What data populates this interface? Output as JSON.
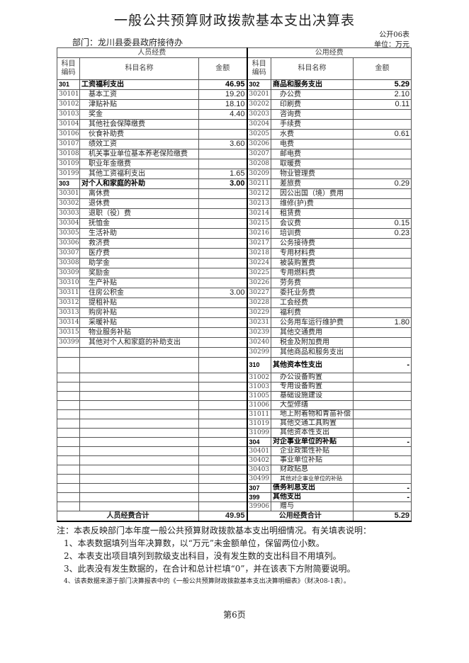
{
  "title": "一般公共预算财政拨款基本支出决算表",
  "form_no": "公开06表",
  "department": "部门：龙川县委县政府接待办",
  "unit": "单位：万元",
  "headers": {
    "personnel": "人员经费",
    "public": "公用经费",
    "code": "科目编码",
    "name": "科目名称",
    "amount": "金额"
  },
  "left": [
    {
      "code": "301",
      "name": "工资福利支出",
      "amount": "46.95",
      "bold": true
    },
    {
      "code": "30101",
      "name": "基本工资",
      "amount": "19.20"
    },
    {
      "code": "30102",
      "name": "津贴补贴",
      "amount": "18.10"
    },
    {
      "code": "30103",
      "name": "奖金",
      "amount": "4.40"
    },
    {
      "code": "30104",
      "name": "其他社会保障缴费",
      "amount": ""
    },
    {
      "code": "30106",
      "name": "伙食补助费",
      "amount": ""
    },
    {
      "code": "30107",
      "name": "绩效工资",
      "amount": "3.60"
    },
    {
      "code": "30108",
      "name": "机关事业单位基本养老保险缴费",
      "amount": ""
    },
    {
      "code": "30109",
      "name": "职业年金缴费",
      "amount": ""
    },
    {
      "code": "30199",
      "name": "其他工资福利支出",
      "amount": "1.65"
    },
    {
      "code": "303",
      "name": "对个人和家庭的补助",
      "amount": "3.00",
      "bold": true
    },
    {
      "code": "30301",
      "name": "离休费",
      "amount": ""
    },
    {
      "code": "30302",
      "name": "退休费",
      "amount": ""
    },
    {
      "code": "30303",
      "name": "退职（役）费",
      "amount": ""
    },
    {
      "code": "30304",
      "name": "抚恤金",
      "amount": ""
    },
    {
      "code": "30305",
      "name": "生活补助",
      "amount": ""
    },
    {
      "code": "30306",
      "name": "救济费",
      "amount": ""
    },
    {
      "code": "30307",
      "name": "医疗费",
      "amount": ""
    },
    {
      "code": "30308",
      "name": "助学金",
      "amount": ""
    },
    {
      "code": "30309",
      "name": "奖励金",
      "amount": ""
    },
    {
      "code": "30310",
      "name": "生产补贴",
      "amount": ""
    },
    {
      "code": "30311",
      "name": "住房公积金",
      "amount": "3.00"
    },
    {
      "code": "30312",
      "name": "提租补贴",
      "amount": ""
    },
    {
      "code": "30313",
      "name": "购房补贴",
      "amount": ""
    },
    {
      "code": "30314",
      "name": "采暖补贴",
      "amount": ""
    },
    {
      "code": "30315",
      "name": "物业服务补贴",
      "amount": ""
    },
    {
      "code": "30399",
      "name": "其他对个人和家庭的补助支出",
      "amount": ""
    }
  ],
  "right": [
    {
      "code": "302",
      "name": "商品和服务支出",
      "amount": "5.29",
      "bold": true
    },
    {
      "code": "30201",
      "name": "办公费",
      "amount": "2.10"
    },
    {
      "code": "30202",
      "name": "印刷费",
      "amount": "0.11"
    },
    {
      "code": "30203",
      "name": "咨询费",
      "amount": ""
    },
    {
      "code": "30204",
      "name": "手续费",
      "amount": ""
    },
    {
      "code": "30205",
      "name": "水费",
      "amount": "0.61"
    },
    {
      "code": "30206",
      "name": "电费",
      "amount": ""
    },
    {
      "code": "30207",
      "name": "邮电费",
      "amount": ""
    },
    {
      "code": "30208",
      "name": "取暖费",
      "amount": ""
    },
    {
      "code": "30209",
      "name": "物业管理费",
      "amount": ""
    },
    {
      "code": "30211",
      "name": "差旅费",
      "amount": "0.29"
    },
    {
      "code": "30212",
      "name": "因公出国（境）费用",
      "amount": ""
    },
    {
      "code": "30213",
      "name": "维修(护)费",
      "amount": ""
    },
    {
      "code": "30214",
      "name": "租赁费",
      "amount": ""
    },
    {
      "code": "30215",
      "name": "会议费",
      "amount": "0.15"
    },
    {
      "code": "30216",
      "name": "培训费",
      "amount": "0.23"
    },
    {
      "code": "30217",
      "name": "公务接待费",
      "amount": ""
    },
    {
      "code": "30218",
      "name": "专用材料费",
      "amount": ""
    },
    {
      "code": "30224",
      "name": "被装购置费",
      "amount": ""
    },
    {
      "code": "30225",
      "name": "专用燃料费",
      "amount": ""
    },
    {
      "code": "30226",
      "name": "劳务费",
      "amount": ""
    },
    {
      "code": "30227",
      "name": "委托业务费",
      "amount": ""
    },
    {
      "code": "30228",
      "name": "工会经费",
      "amount": ""
    },
    {
      "code": "30229",
      "name": "福利费",
      "amount": ""
    },
    {
      "code": "30231",
      "name": "公务用车运行维护费",
      "amount": "1.80"
    },
    {
      "code": "30239",
      "name": "其他交通费用",
      "amount": ""
    },
    {
      "code": "30240",
      "name": "税金及附加费用",
      "amount": ""
    },
    {
      "code": "30299",
      "name": "其他商品和服务支出",
      "amount": ""
    },
    {
      "code": "310",
      "name": "其他资本性支出",
      "amount": "-",
      "bold": true,
      "tall": true
    },
    {
      "code": "31002",
      "name": "办公设备购置",
      "amount": ""
    },
    {
      "code": "31003",
      "name": "专用设备购置",
      "amount": ""
    },
    {
      "code": "31005",
      "name": "基础设施建设",
      "amount": ""
    },
    {
      "code": "31006",
      "name": "大型修缮",
      "amount": ""
    },
    {
      "code": "31011",
      "name": "地上附着物和青苗补偿",
      "amount": ""
    },
    {
      "code": "31019",
      "name": "其他交通工具购置",
      "amount": ""
    },
    {
      "code": "31099",
      "name": "其他资本性支出",
      "amount": ""
    },
    {
      "code": "304",
      "name": "对企事业单位的补贴",
      "amount": "-",
      "bold": true
    },
    {
      "code": "30401",
      "name": "企业政策性补贴",
      "amount": ""
    },
    {
      "code": "30402",
      "name": "事业单位补贴",
      "amount": ""
    },
    {
      "code": "30403",
      "name": "财政贴息",
      "amount": ""
    },
    {
      "code": "30499",
      "name": "其他对企事业单位的补贴",
      "amount": "",
      "small": true
    },
    {
      "code": "307",
      "name": "债务利息支出",
      "amount": "-",
      "bold": true
    },
    {
      "code": "399",
      "name": "其他支出",
      "amount": "-",
      "bold": true
    },
    {
      "code": "39906",
      "name": "赠与",
      "amount": ""
    }
  ],
  "totals": {
    "personnel_label": "人员经费合计",
    "personnel_amount": "49.95",
    "public_label": "公用经费合计",
    "public_amount": "5.29"
  },
  "notes": [
    "注：本表反映部门本年度一般公共预算财政拨款基本支出明细情况。有关填表说明：",
    "1、本表数据填列当年决算数，以“万元”未金额单位，保留两位小数。",
    "2、本表支出项目填列到款级支出科目，没有发生数的支出科目不用填列。",
    "3、此表没有发生数据的，在合计和总计栏填“0”，并在该表下方附简要说明。",
    "4、该表数据来源于部门决算报表中的《一般公共预算财政拨款基本支出决算明细表》（财决08-1表）。"
  ],
  "page_label": "第6页"
}
